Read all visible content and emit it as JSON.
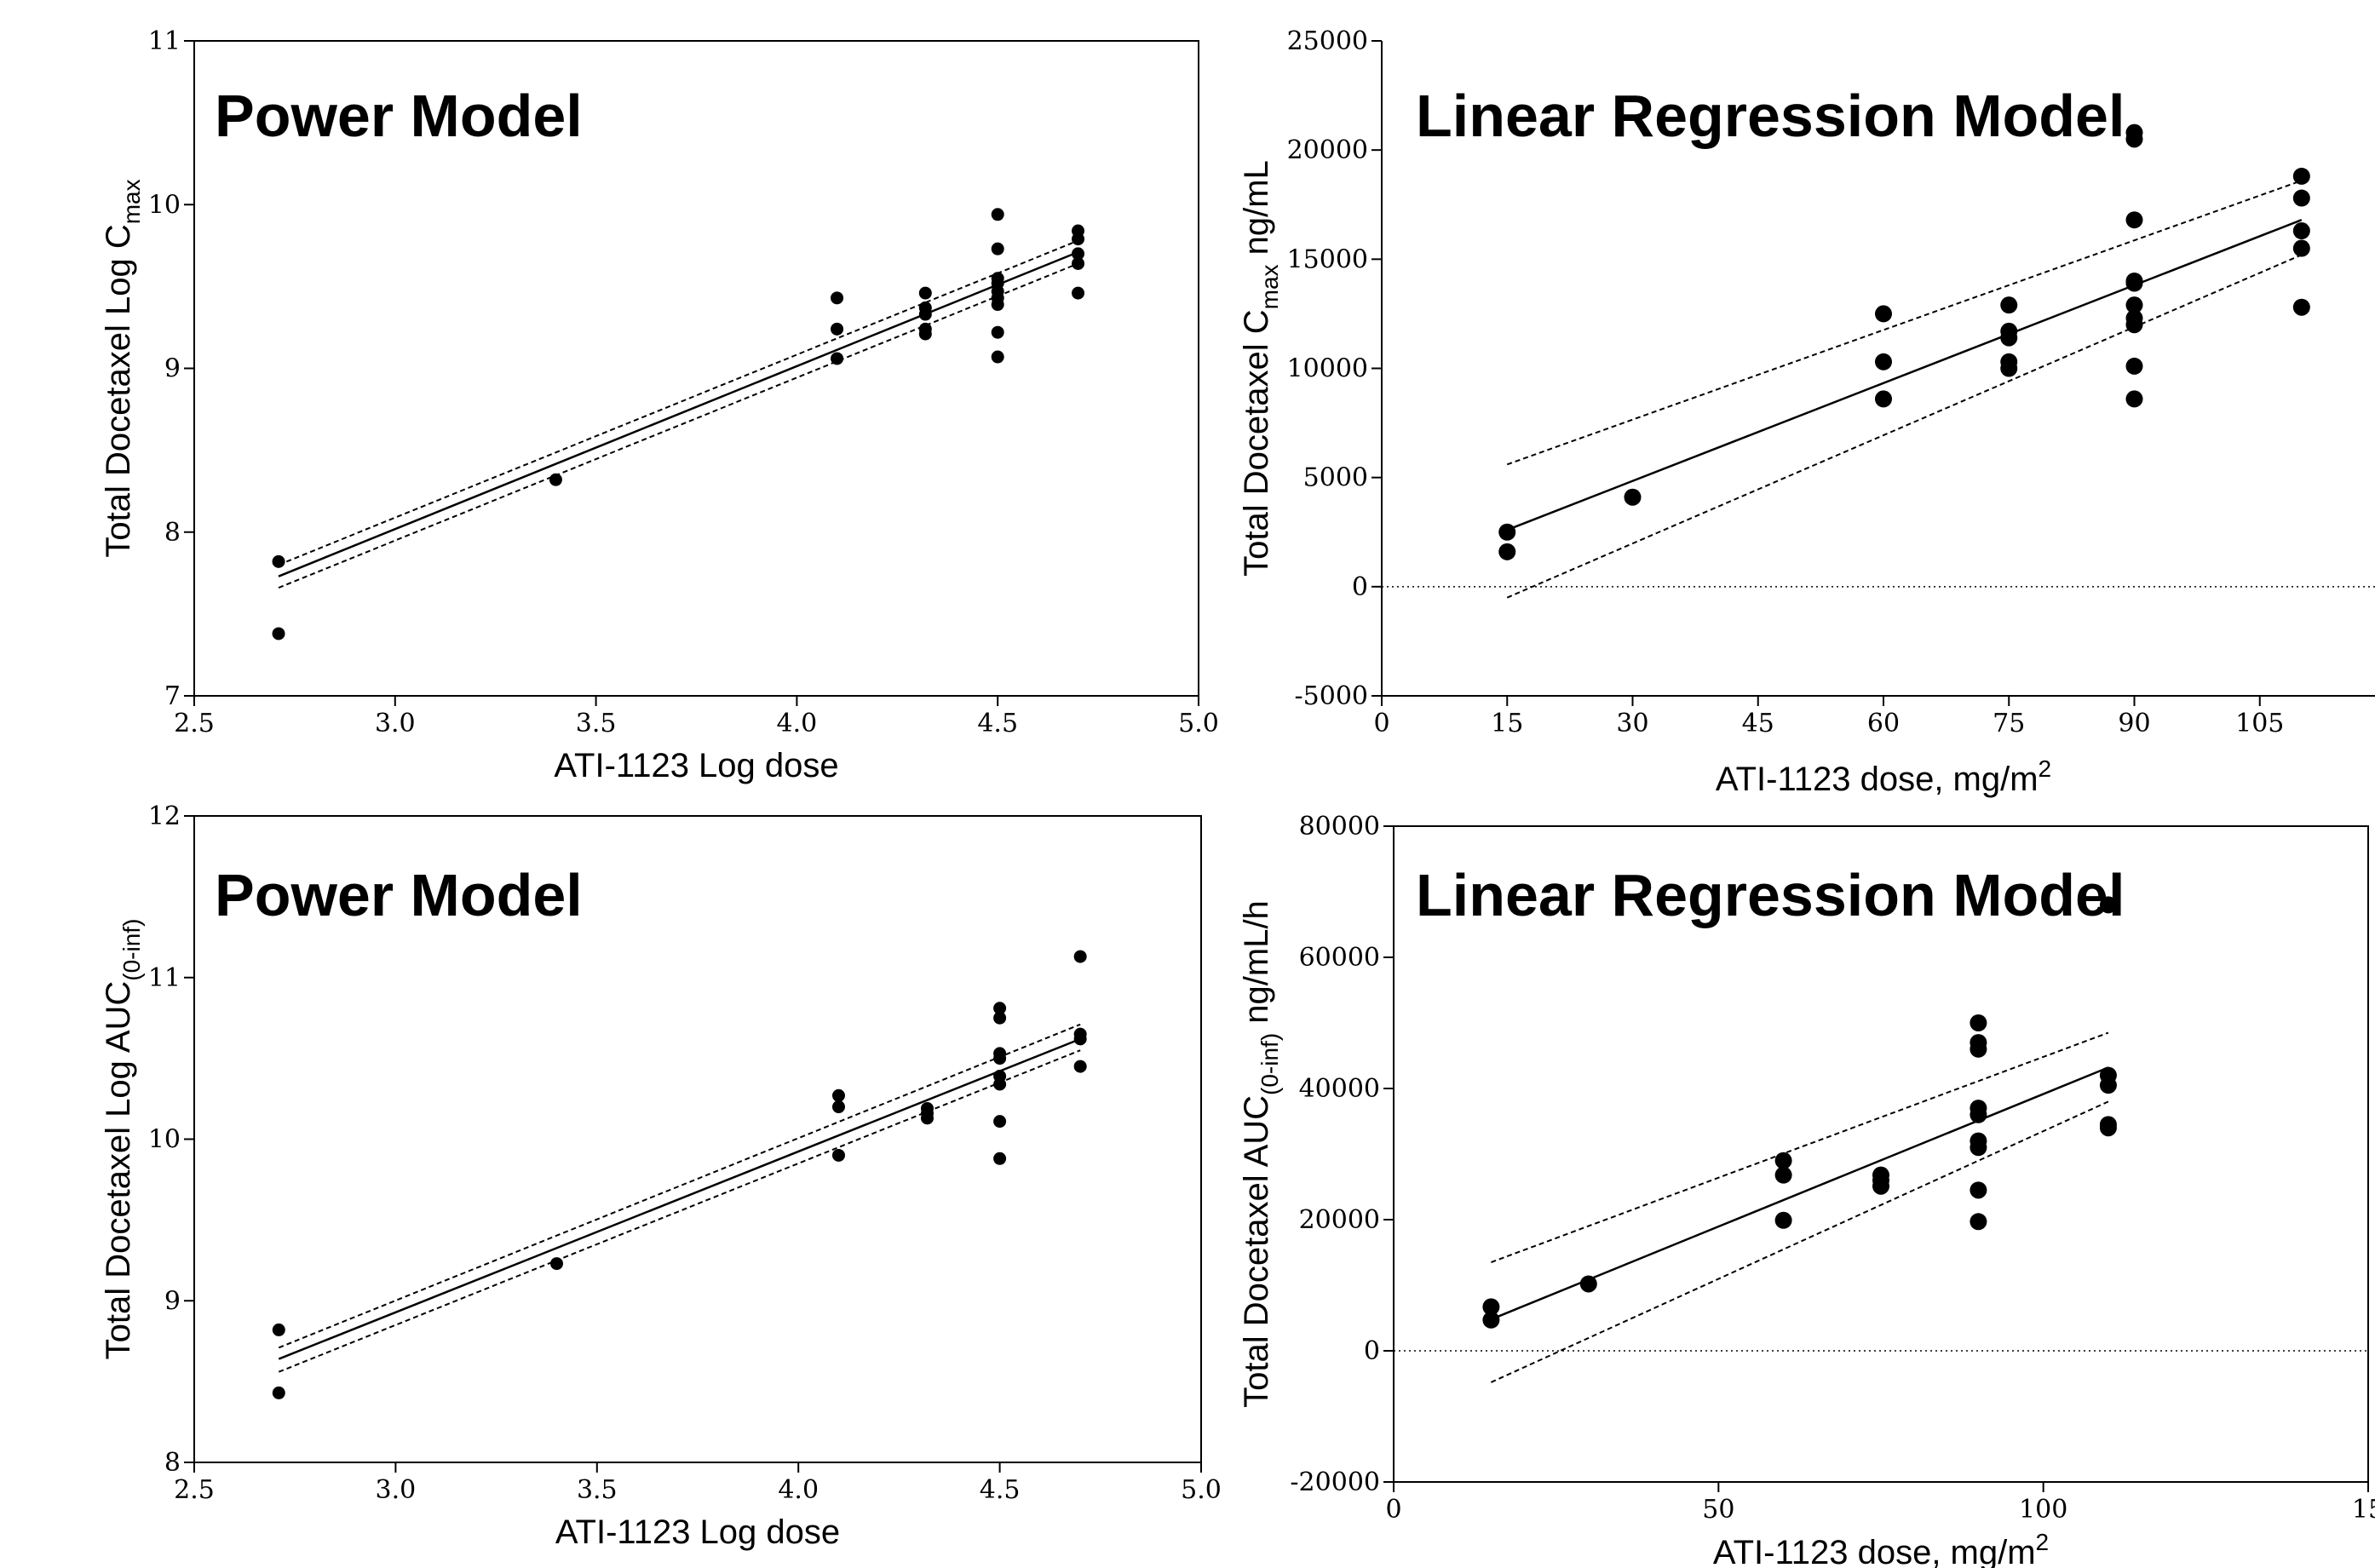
{
  "chart_data": [
    {
      "type": "scatter",
      "title": "Power Model",
      "xlabel": "ATI-1123 Log dose",
      "ylabel": {
        "main": "Total Docetaxel Log C",
        "sub": "max",
        "suffix": ""
      },
      "xlim": [
        2.5,
        5.0
      ],
      "ylim": [
        7,
        11
      ],
      "xticks": [
        "2.5",
        "3.0",
        "3.5",
        "4.0",
        "4.5",
        "5.0"
      ],
      "yticks": [
        "7",
        "8",
        "9",
        "10",
        "11"
      ],
      "grid": false,
      "points": [
        [
          2.71,
          7.82
        ],
        [
          2.71,
          7.38
        ],
        [
          3.4,
          8.32
        ],
        [
          4.1,
          9.43
        ],
        [
          4.1,
          9.24
        ],
        [
          4.1,
          9.06
        ],
        [
          4.32,
          9.46
        ],
        [
          4.32,
          9.37
        ],
        [
          4.32,
          9.33
        ],
        [
          4.32,
          9.24
        ],
        [
          4.32,
          9.21
        ],
        [
          4.5,
          9.94
        ],
        [
          4.5,
          9.73
        ],
        [
          4.5,
          9.55
        ],
        [
          4.5,
          9.52
        ],
        [
          4.5,
          9.47
        ],
        [
          4.5,
          9.43
        ],
        [
          4.5,
          9.39
        ],
        [
          4.5,
          9.22
        ],
        [
          4.5,
          9.07
        ],
        [
          4.7,
          9.84
        ],
        [
          4.7,
          9.79
        ],
        [
          4.7,
          9.7
        ],
        [
          4.7,
          9.64
        ],
        [
          4.7,
          9.46
        ]
      ],
      "fit": [
        [
          2.71,
          7.73
        ],
        [
          4.7,
          9.71
        ]
      ],
      "ci_upper": [
        [
          2.71,
          7.8
        ],
        [
          4.7,
          9.78
        ]
      ],
      "ci_lower": [
        [
          2.71,
          7.66
        ],
        [
          4.7,
          9.64
        ]
      ]
    },
    {
      "type": "scatter",
      "title": "Linear Regression Model",
      "xlabel": {
        "main": "ATI-1123 dose, mg/m",
        "sup": "2"
      },
      "ylabel": {
        "main": "Total Docetaxel C",
        "sub": "max",
        "suffix": " ng/mL"
      },
      "xlim": [
        0,
        120
      ],
      "ylim": [
        -5000,
        25000
      ],
      "xticks": [
        "0",
        "15",
        "30",
        "45",
        "60",
        "75",
        "90",
        "105",
        "1"
      ],
      "yticks": [
        "-5000",
        "0",
        "5000",
        "10000",
        "15000",
        "20000",
        "25000"
      ],
      "zero_line": true,
      "grid": false,
      "points": [
        [
          15,
          2500
        ],
        [
          15,
          1600
        ],
        [
          30,
          4100
        ],
        [
          60,
          12500
        ],
        [
          60,
          10300
        ],
        [
          60,
          8600
        ],
        [
          75,
          12900
        ],
        [
          75,
          11700
        ],
        [
          75,
          11400
        ],
        [
          75,
          10300
        ],
        [
          75,
          10000
        ],
        [
          90,
          20800
        ],
        [
          90,
          20500
        ],
        [
          90,
          16800
        ],
        [
          90,
          14000
        ],
        [
          90,
          13900
        ],
        [
          90,
          12900
        ],
        [
          90,
          12300
        ],
        [
          90,
          12000
        ],
        [
          90,
          10100
        ],
        [
          90,
          8600
        ],
        [
          110,
          18800
        ],
        [
          110,
          17800
        ],
        [
          110,
          16300
        ],
        [
          110,
          15500
        ],
        [
          110,
          12800
        ]
      ],
      "fit": [
        [
          15,
          2600
        ],
        [
          110,
          16800
        ]
      ],
      "ci_upper": [
        [
          15,
          5600
        ],
        [
          110,
          18600
        ]
      ],
      "ci_lower": [
        [
          15,
          -500
        ],
        [
          110,
          15200
        ]
      ]
    },
    {
      "type": "scatter",
      "title": "Power Model",
      "xlabel": "ATI-1123 Log dose",
      "ylabel": {
        "main": "Total Docetaxel Log AUC",
        "sub": "(0-inf)",
        "suffix": ""
      },
      "xlim": [
        2.5,
        5.0
      ],
      "ylim": [
        8,
        12
      ],
      "xticks": [
        "2.5",
        "3.0",
        "3.5",
        "4.0",
        "4.5",
        "5.0"
      ],
      "yticks": [
        "8",
        "9",
        "10",
        "11",
        "12"
      ],
      "grid": false,
      "points": [
        [
          2.71,
          8.82
        ],
        [
          2.71,
          8.43
        ],
        [
          3.4,
          9.23
        ],
        [
          4.1,
          10.27
        ],
        [
          4.1,
          10.2
        ],
        [
          4.1,
          9.9
        ],
        [
          4.32,
          10.19
        ],
        [
          4.32,
          10.16
        ],
        [
          4.32,
          10.13
        ],
        [
          4.5,
          10.81
        ],
        [
          4.5,
          10.75
        ],
        [
          4.5,
          10.53
        ],
        [
          4.5,
          10.5
        ],
        [
          4.5,
          10.39
        ],
        [
          4.5,
          10.34
        ],
        [
          4.5,
          10.11
        ],
        [
          4.5,
          9.88
        ],
        [
          4.7,
          11.13
        ],
        [
          4.7,
          10.65
        ],
        [
          4.7,
          10.62
        ],
        [
          4.7,
          10.45
        ]
      ],
      "fit": [
        [
          2.71,
          8.64
        ],
        [
          4.7,
          10.62
        ]
      ],
      "ci_upper": [
        [
          2.71,
          8.71
        ],
        [
          4.7,
          10.71
        ]
      ],
      "ci_lower": [
        [
          2.71,
          8.56
        ],
        [
          4.7,
          10.55
        ]
      ]
    },
    {
      "type": "scatter",
      "title": "Linear Regression Model",
      "xlabel": {
        "main": "ATI-1123 dose, mg/m",
        "sup": "2"
      },
      "ylabel": {
        "main": "Total Docetaxel AUC",
        "sub": "(0-inf)",
        "suffix": " ng/mL/h"
      },
      "xlim": [
        0,
        150
      ],
      "ylim": [
        -20000,
        80000
      ],
      "xticks": [
        "0",
        "50",
        "100",
        "15"
      ],
      "yticks": [
        "-20000",
        "0",
        "20000",
        "40000",
        "60000",
        "80000"
      ],
      "zero_line": true,
      "grid": false,
      "points": [
        [
          15,
          6700
        ],
        [
          15,
          4700
        ],
        [
          30,
          10200
        ],
        [
          60,
          29000
        ],
        [
          60,
          26800
        ],
        [
          60,
          19900
        ],
        [
          75,
          26800
        ],
        [
          75,
          26000
        ],
        [
          75,
          25100
        ],
        [
          90,
          50000
        ],
        [
          90,
          47000
        ],
        [
          90,
          46000
        ],
        [
          90,
          37000
        ],
        [
          90,
          36000
        ],
        [
          90,
          32000
        ],
        [
          90,
          31000
        ],
        [
          90,
          24500
        ],
        [
          90,
          19700
        ],
        [
          110,
          68000
        ],
        [
          110,
          42000
        ],
        [
          110,
          40500
        ],
        [
          110,
          34500
        ],
        [
          110,
          34000
        ]
      ],
      "fit": [
        [
          15,
          4800
        ],
        [
          110,
          43200
        ]
      ],
      "ci_upper": [
        [
          15,
          13500
        ],
        [
          110,
          48500
        ]
      ],
      "ci_lower": [
        [
          15,
          -4800
        ],
        [
          110,
          38000
        ]
      ]
    }
  ]
}
